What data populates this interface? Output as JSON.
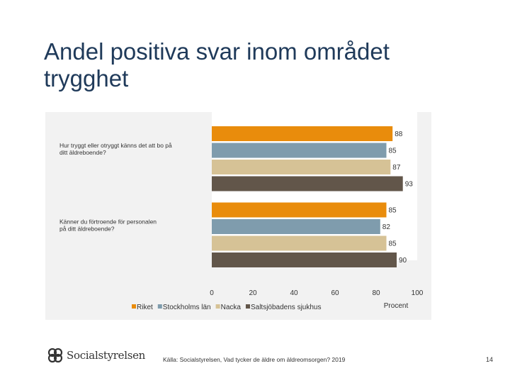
{
  "slide": {
    "title": "Andel positiva svar inom området trygghet",
    "source": "Källa: Socialstyrelsen, Vad tycker de äldre om äldreomsorgen? 2019",
    "page_number": "14",
    "logo_text": "Socialstyrelsen"
  },
  "chart_data": {
    "type": "bar",
    "orientation": "horizontal",
    "categories": [
      "Hur tryggt eller otryggt känns det att bo på ditt äldreboende?",
      "Känner du förtroende för personalen på ditt äldreboende?"
    ],
    "category_lines": [
      [
        "Hur tryggt eller otryggt känns det att bo på",
        "ditt äldreboende?"
      ],
      [
        "Känner du förtroende för personalen",
        "på ditt äldreboende?"
      ]
    ],
    "series": [
      {
        "name": "Riket",
        "color": "#e98c0c",
        "values": [
          88,
          85
        ]
      },
      {
        "name": "Stockholms län",
        "color": "#7f9cad",
        "values": [
          85,
          82
        ]
      },
      {
        "name": "Nacka",
        "color": "#d6c296",
        "values": [
          87,
          85
        ]
      },
      {
        "name": "Saltsjöbadens sjukhus",
        "color": "#62564a",
        "values": [
          93,
          90
        ]
      }
    ],
    "xlim": [
      0,
      100
    ],
    "ticks": [
      0,
      20,
      40,
      60,
      80,
      100
    ],
    "xlabel": "Procent",
    "legend": "bottom-left"
  }
}
